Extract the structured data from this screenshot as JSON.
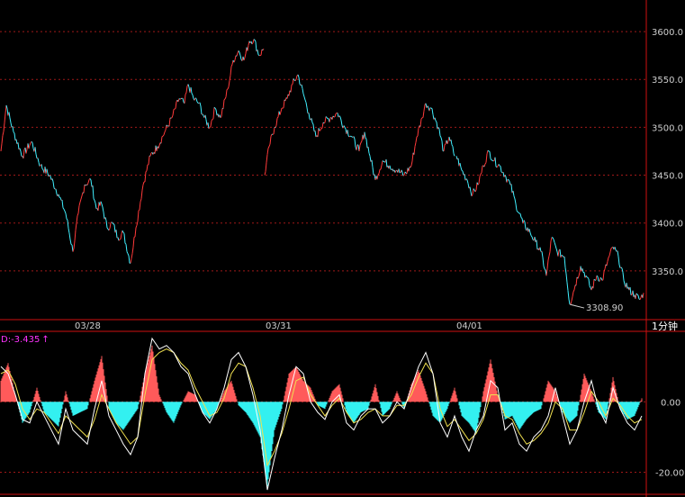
{
  "colors": {
    "background": "#000000",
    "frame": "#d01010",
    "grid": "#a01818",
    "price_up": "#ff3a3a",
    "price_down": "#40f0ff",
    "macd_pos": "#ff5a5a",
    "macd_neg": "#33f0f0",
    "line_fast": "#ffffff",
    "line_slow": "#f0e050",
    "indicator_text": "#ff33ff"
  },
  "chart_data": [
    {
      "type": "line",
      "panel": "price",
      "grid": true,
      "ylim": [
        3300,
        3633
      ],
      "y_ticks": [
        3350,
        3400,
        3450,
        3500,
        3550,
        3600
      ],
      "y_tick_labels": [
        "3350.0",
        "3400.0",
        "3450.0",
        "3500.0",
        "3550.0",
        "3600.0"
      ],
      "date_labels": [
        "03/28",
        "03/31",
        "04/01"
      ],
      "period_label": "1分钟",
      "min_label": "3308.90",
      "sessions": [
        {
          "anchors": [
            [
              0,
              3475
            ],
            [
              6,
              3523
            ],
            [
              14,
              3495
            ],
            [
              24,
              3470
            ],
            [
              34,
              3485
            ],
            [
              44,
              3460
            ],
            [
              54,
              3450
            ],
            [
              64,
              3430
            ],
            [
              72,
              3410
            ],
            [
              80,
              3370
            ],
            [
              86,
              3410
            ],
            [
              93,
              3440
            ],
            [
              100,
              3445
            ],
            [
              106,
              3415
            ],
            [
              112,
              3420
            ],
            [
              118,
              3395
            ],
            [
              124,
              3400
            ],
            [
              130,
              3385
            ],
            [
              136,
              3390
            ],
            [
              144,
              3358
            ],
            [
              150,
              3395
            ],
            [
              158,
              3440
            ],
            [
              166,
              3470
            ],
            [
              174,
              3480
            ],
            [
              182,
              3495
            ],
            [
              190,
              3510
            ],
            [
              198,
              3530
            ],
            [
              204,
              3525
            ],
            [
              208,
              3545
            ],
            [
              214,
              3530
            ],
            [
              220,
              3525
            ],
            [
              226,
              3510
            ],
            [
              232,
              3500
            ],
            [
              238,
              3520
            ],
            [
              244,
              3510
            ],
            [
              252,
              3540
            ],
            [
              258,
              3570
            ],
            [
              264,
              3580
            ],
            [
              270,
              3570
            ],
            [
              276,
              3590
            ],
            [
              281,
              3592
            ],
            [
              287,
              3575
            ],
            [
              292,
              3582
            ]
          ]
        },
        {
          "anchors": [
            [
              293,
              3450
            ],
            [
              298,
              3480
            ],
            [
              304,
              3500
            ],
            [
              312,
              3520
            ],
            [
              318,
              3530
            ],
            [
              324,
              3545
            ],
            [
              330,
              3555
            ],
            [
              336,
              3535
            ],
            [
              342,
              3515
            ],
            [
              350,
              3490
            ],
            [
              358,
              3505
            ],
            [
              366,
              3510
            ],
            [
              374,
              3515
            ],
            [
              382,
              3500
            ],
            [
              390,
              3490
            ],
            [
              398,
              3475
            ],
            [
              404,
              3495
            ],
            [
              410,
              3470
            ],
            [
              416,
              3445
            ],
            [
              424,
              3465
            ],
            [
              432,
              3460
            ],
            [
              440,
              3455
            ],
            [
              448,
              3450
            ],
            [
              456,
              3460
            ],
            [
              462,
              3490
            ],
            [
              468,
              3510
            ],
            [
              472,
              3525
            ],
            [
              478,
              3520
            ],
            [
              486,
              3500
            ],
            [
              492,
              3475
            ],
            [
              498,
              3490
            ],
            [
              504,
              3470
            ]
          ]
        },
        {
          "anchors": [
            [
              506,
              3470
            ],
            [
              512,
              3455
            ],
            [
              518,
              3445
            ],
            [
              524,
              3430
            ],
            [
              530,
              3440
            ],
            [
              536,
              3460
            ],
            [
              542,
              3475
            ],
            [
              548,
              3465
            ],
            [
              554,
              3460
            ],
            [
              560,
              3450
            ],
            [
              566,
              3440
            ],
            [
              572,
              3420
            ],
            [
              580,
              3400
            ],
            [
              588,
              3390
            ],
            [
              594,
              3380
            ],
            [
              600,
              3370
            ],
            [
              606,
              3345
            ],
            [
              612,
              3385
            ],
            [
              618,
              3370
            ],
            [
              626,
              3365
            ],
            [
              632,
              3315
            ],
            [
              638,
              3335
            ],
            [
              644,
              3355
            ],
            [
              650,
              3345
            ],
            [
              656,
              3330
            ],
            [
              662,
              3345
            ],
            [
              668,
              3340
            ],
            [
              674,
              3360
            ],
            [
              680,
              3375
            ],
            [
              686,
              3365
            ],
            [
              692,
              3340
            ],
            [
              698,
              3330
            ],
            [
              704,
              3325
            ],
            [
              710,
              3320
            ],
            [
              714,
              3327
            ]
          ]
        }
      ]
    },
    {
      "type": "bar",
      "panel": "indicator",
      "indicator_label": "D:-3.435",
      "indicator_arrow": "↑",
      "ylim": [
        -26,
        19.5
      ],
      "y_ticks": [
        0,
        -20
      ],
      "y_tick_labels": [
        "0.00",
        "-20.00"
      ],
      "x": [
        0,
        8,
        16,
        24,
        32,
        40,
        48,
        56,
        64,
        72,
        80,
        88,
        96,
        104,
        112,
        120,
        128,
        136,
        144,
        152,
        160,
        168,
        176,
        184,
        192,
        200,
        208,
        216,
        224,
        232,
        240,
        248,
        256,
        264,
        272,
        280,
        288,
        296,
        304,
        312,
        320,
        328,
        336,
        344,
        352,
        360,
        368,
        376,
        384,
        392,
        400,
        408,
        416,
        424,
        432,
        440,
        448,
        456,
        464,
        472,
        480,
        488,
        496,
        504,
        512,
        520,
        528,
        536,
        544,
        552,
        560,
        568,
        576,
        584,
        592,
        600,
        608,
        616,
        624,
        632,
        640,
        648,
        656,
        664,
        672,
        680,
        688,
        696,
        704,
        712
      ],
      "values": [
        6,
        11,
        2,
        -6,
        -3,
        4,
        -3,
        -5,
        -7,
        3,
        -4,
        -3,
        -2,
        6,
        13,
        -2,
        -6,
        -8,
        -5,
        -2,
        8,
        16,
        2,
        -3,
        -6,
        -1,
        3,
        2,
        -3,
        -5,
        -2,
        3,
        6,
        -1,
        -3,
        -6,
        -10,
        -24,
        -8,
        -2,
        8,
        10,
        6,
        4,
        -1,
        -2,
        3,
        5,
        -3,
        -6,
        -3,
        -2,
        5,
        -4,
        -2,
        3,
        -2,
        5,
        9,
        3,
        -4,
        -6,
        -2,
        4,
        -4,
        -6,
        -9,
        3,
        12,
        2,
        -5,
        -4,
        -8,
        -5,
        -3,
        -2,
        6,
        3,
        -3,
        -6,
        -4,
        8,
        3,
        -3,
        -5,
        7,
        -2,
        -5,
        -4,
        1
      ],
      "fast": [
        10,
        8,
        2,
        -5,
        -6,
        0,
        -4,
        -8,
        -12,
        -2,
        -8,
        -10,
        -12,
        -2,
        6,
        -4,
        -8,
        -12,
        -15,
        -10,
        8,
        18,
        15,
        16,
        14,
        10,
        8,
        2,
        -3,
        -6,
        -2,
        4,
        12,
        14,
        10,
        2,
        -8,
        -25,
        -16,
        -8,
        2,
        10,
        8,
        0,
        -3,
        -5,
        0,
        2,
        -6,
        -8,
        -4,
        -2,
        -2,
        -6,
        -4,
        0,
        -2,
        4,
        10,
        14,
        8,
        -6,
        -10,
        -4,
        -10,
        -14,
        -8,
        -4,
        6,
        4,
        -8,
        -6,
        -12,
        -14,
        -10,
        -8,
        -4,
        4,
        -4,
        -12,
        -8,
        0,
        6,
        -2,
        -6,
        4,
        -2,
        -6,
        -8,
        -4
      ],
      "slow": [
        8,
        9,
        5,
        -2,
        -5,
        -2,
        -3,
        -6,
        -9,
        -4,
        -6,
        -8,
        -10,
        -5,
        2,
        -2,
        -6,
        -9,
        -12,
        -10,
        2,
        12,
        14,
        15,
        14,
        11,
        9,
        4,
        0,
        -4,
        -3,
        1,
        8,
        11,
        10,
        4,
        -4,
        -18,
        -14,
        -9,
        -2,
        6,
        7,
        2,
        -1,
        -4,
        -1,
        1,
        -3,
        -6,
        -5,
        -3,
        -2,
        -4,
        -4,
        -1,
        -1,
        2,
        7,
        11,
        8,
        -2,
        -7,
        -5,
        -8,
        -11,
        -9,
        -5,
        2,
        2,
        -4,
        -5,
        -9,
        -12,
        -11,
        -9,
        -6,
        0,
        -2,
        -8,
        -8,
        -3,
        3,
        0,
        -4,
        1,
        -1,
        -4,
        -6,
        -5
      ]
    }
  ]
}
